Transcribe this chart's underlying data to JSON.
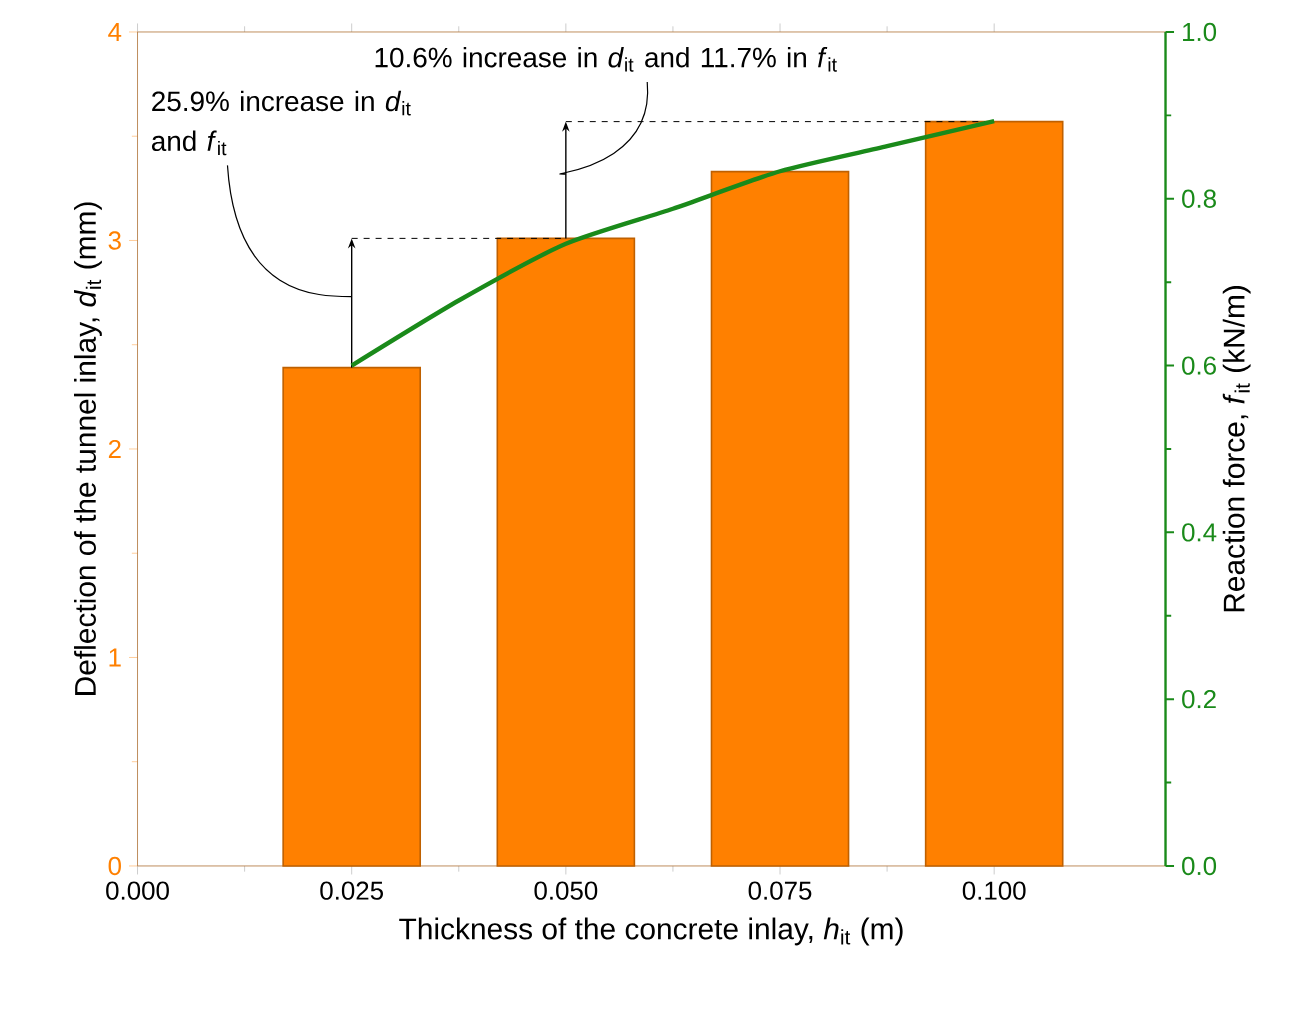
{
  "chart_data": {
    "type": "bar",
    "x": [
      0.025,
      0.05,
      0.075,
      0.1
    ],
    "xlabel": "Thickness of the concrete inlay, *h*$_{it}$ (m)",
    "ylabel": "Deflection of the tunnel inlay, *d*$_{it}$ (mm)",
    "y2label": "Reaction force, *f*$_{it}$ (kN/m)",
    "xlim": [
      0,
      0.12
    ],
    "xticks": [
      {
        "value": 0,
        "label": "0.000"
      },
      {
        "value": 0.025,
        "label": "0.025"
      },
      {
        "value": 0.05,
        "label": "0.050"
      },
      {
        "value": 0.075,
        "label": "0.075"
      },
      {
        "value": 0.1,
        "label": "0.100"
      }
    ],
    "ylim": [
      0,
      4
    ],
    "yticks": [
      0,
      1,
      2,
      3,
      4
    ],
    "y2lim": [
      0,
      1
    ],
    "y2ticks": [
      {
        "value": 0,
        "label": "0.0"
      },
      {
        "value": 0.2,
        "label": "0.2"
      },
      {
        "value": 0.4,
        "label": "0.4"
      },
      {
        "value": 0.6,
        "label": "0.6"
      },
      {
        "value": 0.8,
        "label": "0.8"
      },
      {
        "value": 1,
        "label": "1.0"
      }
    ],
    "series": [
      {
        "color": "#ff8000",
        "values": [
          2.39,
          3.01,
          3.33,
          3.57
        ]
      },
      {
        "type": "line",
        "axis": "y2",
        "color": "#1a8a1a",
        "x": [
          0.025,
          0.0375,
          0.05,
          0.0625,
          0.075,
          0.0875,
          0.1
        ],
        "values": [
          0.6,
          0.678,
          0.746,
          0.788,
          0.833,
          0.863,
          0.893
        ]
      }
    ],
    "annotations": [
      "25.9% increase in *d*$_{it}$ and *f*$_{it}$",
      "10.6% increase in *d*$_{it}$ and 11.7% in *f*$_{it}$"
    ]
  }
}
